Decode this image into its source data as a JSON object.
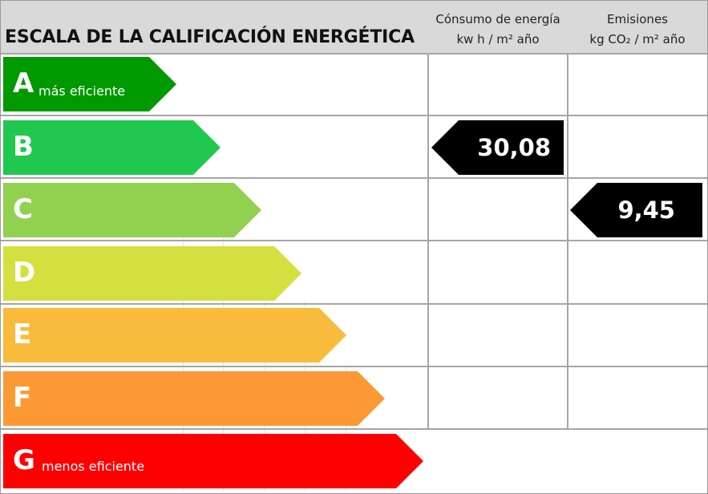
{
  "header": {
    "title": "ESCALA DE LA CALIFICACIÓN ENERGÉTICA",
    "consumption": {
      "line1": "Cónsumo de energía",
      "line2": "kw h / m² año"
    },
    "emissions": {
      "line1": "Emisiones",
      "line2": "kg CO₂ / m² año"
    }
  },
  "ratings": [
    {
      "letter": "A",
      "caption": "más eficiente",
      "color": "#009900"
    },
    {
      "letter": "B",
      "caption": "",
      "color": "#20c84f"
    },
    {
      "letter": "C",
      "caption": "",
      "color": "#92d050"
    },
    {
      "letter": "D",
      "caption": "",
      "color": "#d4e040"
    },
    {
      "letter": "E",
      "caption": "",
      "color": "#f9bb3b"
    },
    {
      "letter": "F",
      "caption": "",
      "color": "#fb9a34"
    },
    {
      "letter": "G",
      "caption": "menos eficiente",
      "color": "#ff0000"
    }
  ],
  "consumption_indicator": {
    "value": "30,08",
    "rating": "B",
    "color": "#000000"
  },
  "emissions_indicator": {
    "value": "9,45",
    "rating": "C",
    "color": "#000000"
  }
}
